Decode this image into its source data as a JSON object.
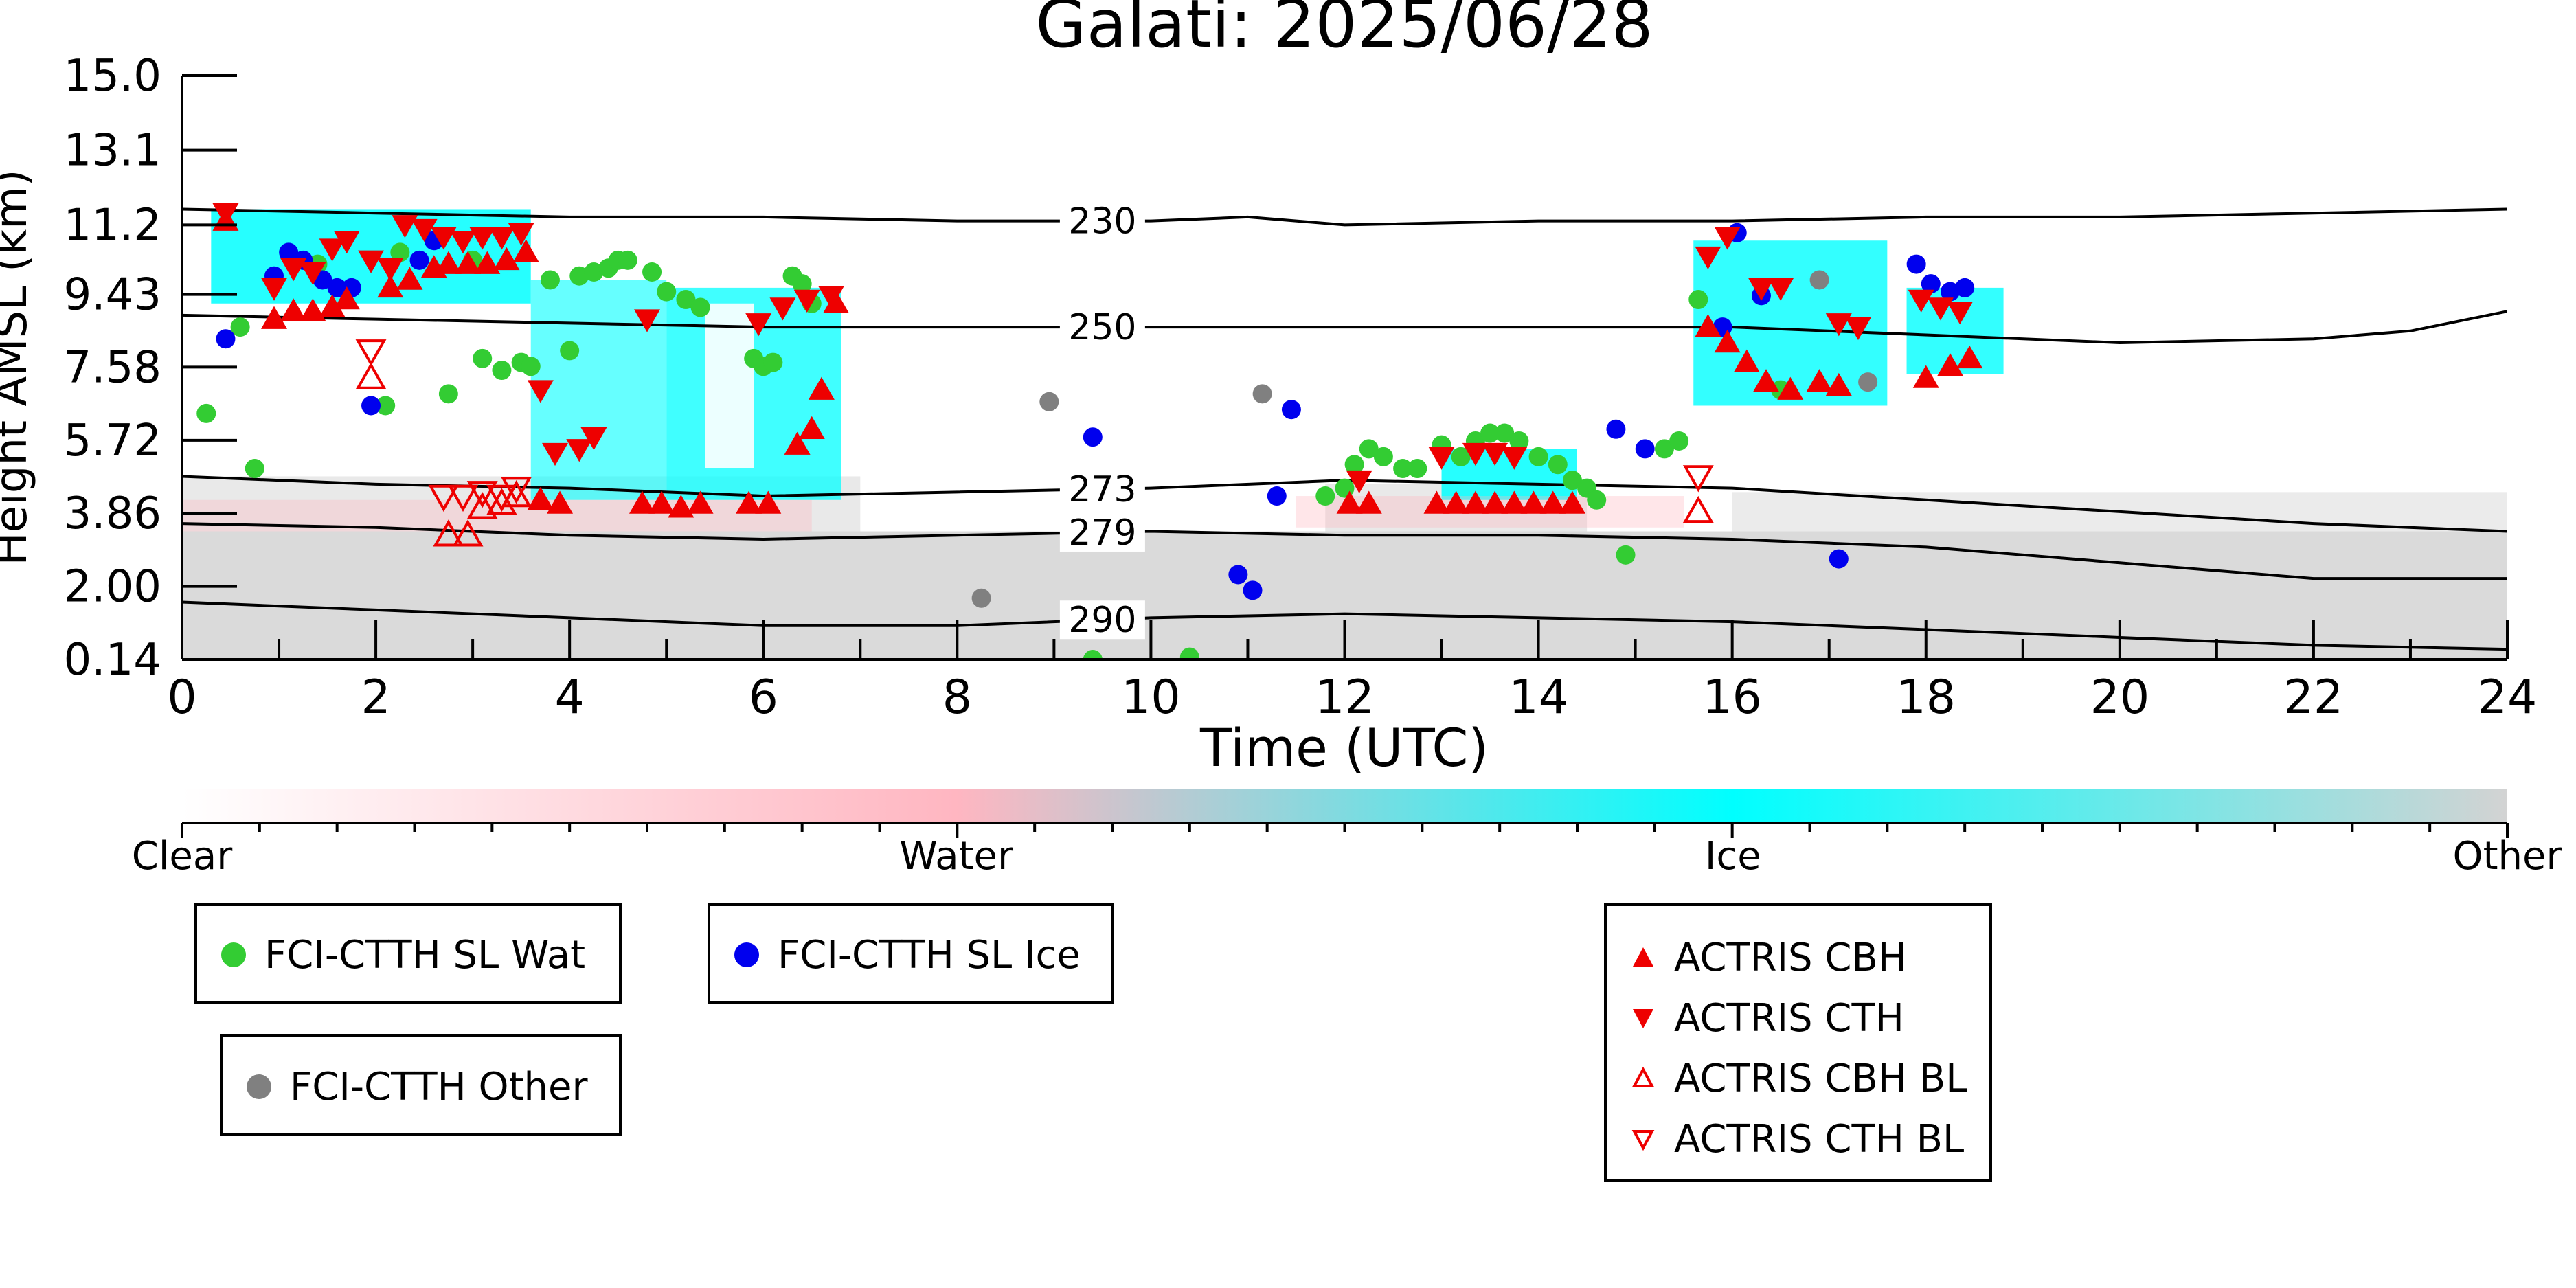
{
  "chart_data": {
    "type": "scatter",
    "title": "Galati: 2025/06/28",
    "xlabel": "Time (UTC)",
    "ylabel": "Height AMSL (km)",
    "xlim": [
      0,
      24
    ],
    "ylim": [
      0.14,
      15.0
    ],
    "xticks": [
      "0",
      "2",
      "4",
      "6",
      "8",
      "10",
      "12",
      "14",
      "16",
      "18",
      "20",
      "22",
      "24"
    ],
    "yticks": [
      "15.0",
      "13.1",
      "11.2",
      "9.43",
      "7.58",
      "5.72",
      "3.86",
      "2.00",
      "0.14"
    ],
    "colorbar": {
      "labels": [
        "Clear",
        "Water",
        "Ice",
        "Other"
      ],
      "colors": [
        "#ffffff",
        "#ffb6c1",
        "#00ffff",
        "#d3d3d3"
      ]
    },
    "isotherms": [
      {
        "label": "230",
        "x": [
          0,
          2,
          4,
          6,
          8,
          10,
          11,
          12,
          14,
          16,
          18,
          20,
          22,
          24
        ],
        "y": [
          11.6,
          11.5,
          11.4,
          11.4,
          11.3,
          11.3,
          11.4,
          11.2,
          11.3,
          11.3,
          11.4,
          11.4,
          11.5,
          11.6
        ],
        "label_x": 9.5
      },
      {
        "label": "250",
        "x": [
          0,
          2,
          4,
          6,
          8,
          10,
          12,
          14,
          16,
          18,
          20,
          22,
          23,
          24
        ],
        "y": [
          8.9,
          8.8,
          8.7,
          8.6,
          8.6,
          8.6,
          8.6,
          8.6,
          8.6,
          8.4,
          8.2,
          8.3,
          8.5,
          9.0
        ],
        "label_x": 9.5
      },
      {
        "label": "273",
        "x": [
          0,
          2,
          4,
          6,
          8,
          10,
          12,
          14,
          16,
          18,
          20,
          22,
          24
        ],
        "y": [
          4.8,
          4.6,
          4.5,
          4.3,
          4.4,
          4.5,
          4.7,
          4.6,
          4.5,
          4.2,
          3.9,
          3.6,
          3.4
        ],
        "label_x": 9.5
      },
      {
        "label": "279",
        "x": [
          0,
          2,
          4,
          6,
          8,
          10,
          12,
          14,
          16,
          18,
          20,
          22,
          24
        ],
        "y": [
          3.6,
          3.5,
          3.3,
          3.2,
          3.3,
          3.4,
          3.3,
          3.3,
          3.2,
          3.0,
          2.6,
          2.2,
          2.2
        ],
        "label_x": 9.5
      },
      {
        "label": "290",
        "x": [
          0,
          2,
          4,
          6,
          8,
          10,
          12,
          14,
          16,
          18,
          20,
          22,
          24
        ],
        "y": [
          1.6,
          1.4,
          1.2,
          1.0,
          1.0,
          1.2,
          1.3,
          1.2,
          1.1,
          0.9,
          0.7,
          0.5,
          0.4
        ],
        "label_x": 9.5
      }
    ],
    "series": [
      {
        "name": "FCI-CTTH SL Wat",
        "marker": "circle",
        "color": "#33cc33",
        "points": [
          [
            0.25,
            6.4
          ],
          [
            0.6,
            8.6
          ],
          [
            0.75,
            5.0
          ],
          [
            1.4,
            10.2
          ],
          [
            2.1,
            6.6
          ],
          [
            2.25,
            10.5
          ],
          [
            2.75,
            6.9
          ],
          [
            3.0,
            10.3
          ],
          [
            3.1,
            7.8
          ],
          [
            3.3,
            7.5
          ],
          [
            3.5,
            7.7
          ],
          [
            3.6,
            7.6
          ],
          [
            3.8,
            9.8
          ],
          [
            4.0,
            8.0
          ],
          [
            4.1,
            9.9
          ],
          [
            4.25,
            10.0
          ],
          [
            4.4,
            10.1
          ],
          [
            4.5,
            10.3
          ],
          [
            4.6,
            10.3
          ],
          [
            4.85,
            10.0
          ],
          [
            5.0,
            9.5
          ],
          [
            5.2,
            9.3
          ],
          [
            5.35,
            9.1
          ],
          [
            5.9,
            7.8
          ],
          [
            6.0,
            7.6
          ],
          [
            6.1,
            7.7
          ],
          [
            6.3,
            9.9
          ],
          [
            6.4,
            9.7
          ],
          [
            6.5,
            9.2
          ],
          [
            9.4,
            0.14
          ],
          [
            10.4,
            0.2
          ],
          [
            11.8,
            4.3
          ],
          [
            12.0,
            4.5
          ],
          [
            12.1,
            5.1
          ],
          [
            12.25,
            5.5
          ],
          [
            12.4,
            5.3
          ],
          [
            12.6,
            5.0
          ],
          [
            12.75,
            5.0
          ],
          [
            13.0,
            5.6
          ],
          [
            13.2,
            5.3
          ],
          [
            13.35,
            5.7
          ],
          [
            13.5,
            5.9
          ],
          [
            13.65,
            5.9
          ],
          [
            13.8,
            5.7
          ],
          [
            14.0,
            5.3
          ],
          [
            14.2,
            5.1
          ],
          [
            14.35,
            4.7
          ],
          [
            14.5,
            4.5
          ],
          [
            14.6,
            4.2
          ],
          [
            14.9,
            2.8
          ],
          [
            15.3,
            5.5
          ],
          [
            15.45,
            5.7
          ],
          [
            15.65,
            9.3
          ],
          [
            16.5,
            7.0
          ]
        ]
      },
      {
        "name": "FCI-CTTH SL Ice",
        "marker": "circle",
        "color": "#0000ee",
        "points": [
          [
            0.45,
            8.3
          ],
          [
            0.95,
            9.9
          ],
          [
            1.1,
            10.5
          ],
          [
            1.25,
            10.3
          ],
          [
            1.45,
            9.8
          ],
          [
            1.6,
            9.6
          ],
          [
            1.75,
            9.6
          ],
          [
            1.95,
            6.6
          ],
          [
            2.45,
            10.3
          ],
          [
            2.6,
            10.8
          ],
          [
            9.4,
            5.8
          ],
          [
            10.9,
            2.3
          ],
          [
            11.05,
            1.9
          ],
          [
            11.3,
            4.3
          ],
          [
            11.45,
            6.5
          ],
          [
            14.8,
            6.0
          ],
          [
            15.1,
            5.5
          ],
          [
            15.9,
            8.6
          ],
          [
            16.05,
            11.0
          ],
          [
            16.3,
            9.4
          ],
          [
            17.1,
            2.7
          ],
          [
            17.9,
            10.2
          ],
          [
            18.05,
            9.7
          ],
          [
            18.25,
            9.5
          ],
          [
            18.4,
            9.6
          ]
        ]
      },
      {
        "name": "FCI-CTTH Other",
        "marker": "circle",
        "color": "#808080",
        "points": [
          [
            8.25,
            1.7
          ],
          [
            8.95,
            6.7
          ],
          [
            11.15,
            6.9
          ],
          [
            16.9,
            9.8
          ],
          [
            17.4,
            7.2
          ]
        ]
      },
      {
        "name": "ACTRIS CBH",
        "marker": "triangle-up",
        "color": "#ee0000",
        "points": [
          [
            0.45,
            11.3
          ],
          [
            0.95,
            8.8
          ],
          [
            1.15,
            9.0
          ],
          [
            1.35,
            9.0
          ],
          [
            1.55,
            9.1
          ],
          [
            1.7,
            9.3
          ],
          [
            2.15,
            9.6
          ],
          [
            2.35,
            9.8
          ],
          [
            2.6,
            10.1
          ],
          [
            2.75,
            10.2
          ],
          [
            2.95,
            10.2
          ],
          [
            3.15,
            10.2
          ],
          [
            3.35,
            10.3
          ],
          [
            3.55,
            10.5
          ],
          [
            3.7,
            4.2
          ],
          [
            3.9,
            4.1
          ],
          [
            4.75,
            4.1
          ],
          [
            4.95,
            4.1
          ],
          [
            5.15,
            4.0
          ],
          [
            5.35,
            4.1
          ],
          [
            5.85,
            4.1
          ],
          [
            6.05,
            4.1
          ],
          [
            6.35,
            5.6
          ],
          [
            6.5,
            6.0
          ],
          [
            6.6,
            7.0
          ],
          [
            6.75,
            9.2
          ],
          [
            12.05,
            4.1
          ],
          [
            12.25,
            4.1
          ],
          [
            12.95,
            4.1
          ],
          [
            13.15,
            4.1
          ],
          [
            13.35,
            4.1
          ],
          [
            13.55,
            4.1
          ],
          [
            13.75,
            4.1
          ],
          [
            13.95,
            4.1
          ],
          [
            14.15,
            4.1
          ],
          [
            14.35,
            4.1
          ],
          [
            15.75,
            8.6
          ],
          [
            15.95,
            8.2
          ],
          [
            16.15,
            7.7
          ],
          [
            16.35,
            7.2
          ],
          [
            16.6,
            7.0
          ],
          [
            16.9,
            7.2
          ],
          [
            17.1,
            7.1
          ],
          [
            18.0,
            7.3
          ],
          [
            18.25,
            7.6
          ],
          [
            18.45,
            7.8
          ]
        ]
      },
      {
        "name": "ACTRIS CTH",
        "marker": "triangle-down",
        "color": "#ee0000",
        "points": [
          [
            0.45,
            11.5
          ],
          [
            0.95,
            9.6
          ],
          [
            1.15,
            10.1
          ],
          [
            1.35,
            10.0
          ],
          [
            1.55,
            10.6
          ],
          [
            1.7,
            10.8
          ],
          [
            1.95,
            10.3
          ],
          [
            2.15,
            10.1
          ],
          [
            2.3,
            11.2
          ],
          [
            2.5,
            11.1
          ],
          [
            2.7,
            10.9
          ],
          [
            2.9,
            10.8
          ],
          [
            3.1,
            10.9
          ],
          [
            3.3,
            10.9
          ],
          [
            3.5,
            11.0
          ],
          [
            3.7,
            7.0
          ],
          [
            3.85,
            5.4
          ],
          [
            4.1,
            5.5
          ],
          [
            4.25,
            5.8
          ],
          [
            4.8,
            8.8
          ],
          [
            5.95,
            8.7
          ],
          [
            6.2,
            9.1
          ],
          [
            6.45,
            9.3
          ],
          [
            6.7,
            9.4
          ],
          [
            12.15,
            4.7
          ],
          [
            13.0,
            5.3
          ],
          [
            13.35,
            5.4
          ],
          [
            13.55,
            5.4
          ],
          [
            13.75,
            5.3
          ],
          [
            15.75,
            10.4
          ],
          [
            15.95,
            10.9
          ],
          [
            16.3,
            9.6
          ],
          [
            16.5,
            9.6
          ],
          [
            17.1,
            8.7
          ],
          [
            17.3,
            8.6
          ],
          [
            17.95,
            9.3
          ],
          [
            18.15,
            9.1
          ],
          [
            18.35,
            9.0
          ]
        ]
      },
      {
        "name": "ACTRIS CBH BL",
        "marker": "triangle-up-open",
        "color": "#ee0000",
        "points": [
          [
            1.95,
            7.3
          ],
          [
            2.75,
            3.3
          ],
          [
            2.95,
            3.3
          ],
          [
            3.1,
            4.0
          ],
          [
            3.3,
            4.1
          ],
          [
            3.45,
            4.3
          ],
          [
            15.65,
            3.9
          ]
        ]
      },
      {
        "name": "ACTRIS CTH BL",
        "marker": "triangle-down-open",
        "color": "#ee0000",
        "points": [
          [
            1.95,
            8.0
          ],
          [
            2.7,
            4.3
          ],
          [
            2.9,
            4.3
          ],
          [
            3.1,
            4.4
          ],
          [
            3.3,
            4.3
          ],
          [
            3.45,
            4.5
          ],
          [
            15.65,
            4.8
          ]
        ]
      }
    ],
    "legends": [
      {
        "entries": [
          {
            "label": "FCI-CTTH SL Wat",
            "marker": "circle",
            "color": "#33cc33"
          }
        ]
      },
      {
        "entries": [
          {
            "label": "FCI-CTTH SL Ice",
            "marker": "circle",
            "color": "#0000ee"
          }
        ]
      },
      {
        "entries": [
          {
            "label": "FCI-CTTH Other",
            "marker": "circle",
            "color": "#808080"
          }
        ]
      },
      {
        "entries": [
          {
            "label": "ACTRIS CBH",
            "marker": "triangle-up",
            "color": "#ee0000"
          },
          {
            "label": "ACTRIS CTH",
            "marker": "triangle-down",
            "color": "#ee0000"
          },
          {
            "label": "ACTRIS CBH BL",
            "marker": "triangle-up-open",
            "color": "#ee0000"
          },
          {
            "label": "ACTRIS CTH BL",
            "marker": "triangle-down-open",
            "color": "#ee0000"
          }
        ]
      }
    ]
  }
}
